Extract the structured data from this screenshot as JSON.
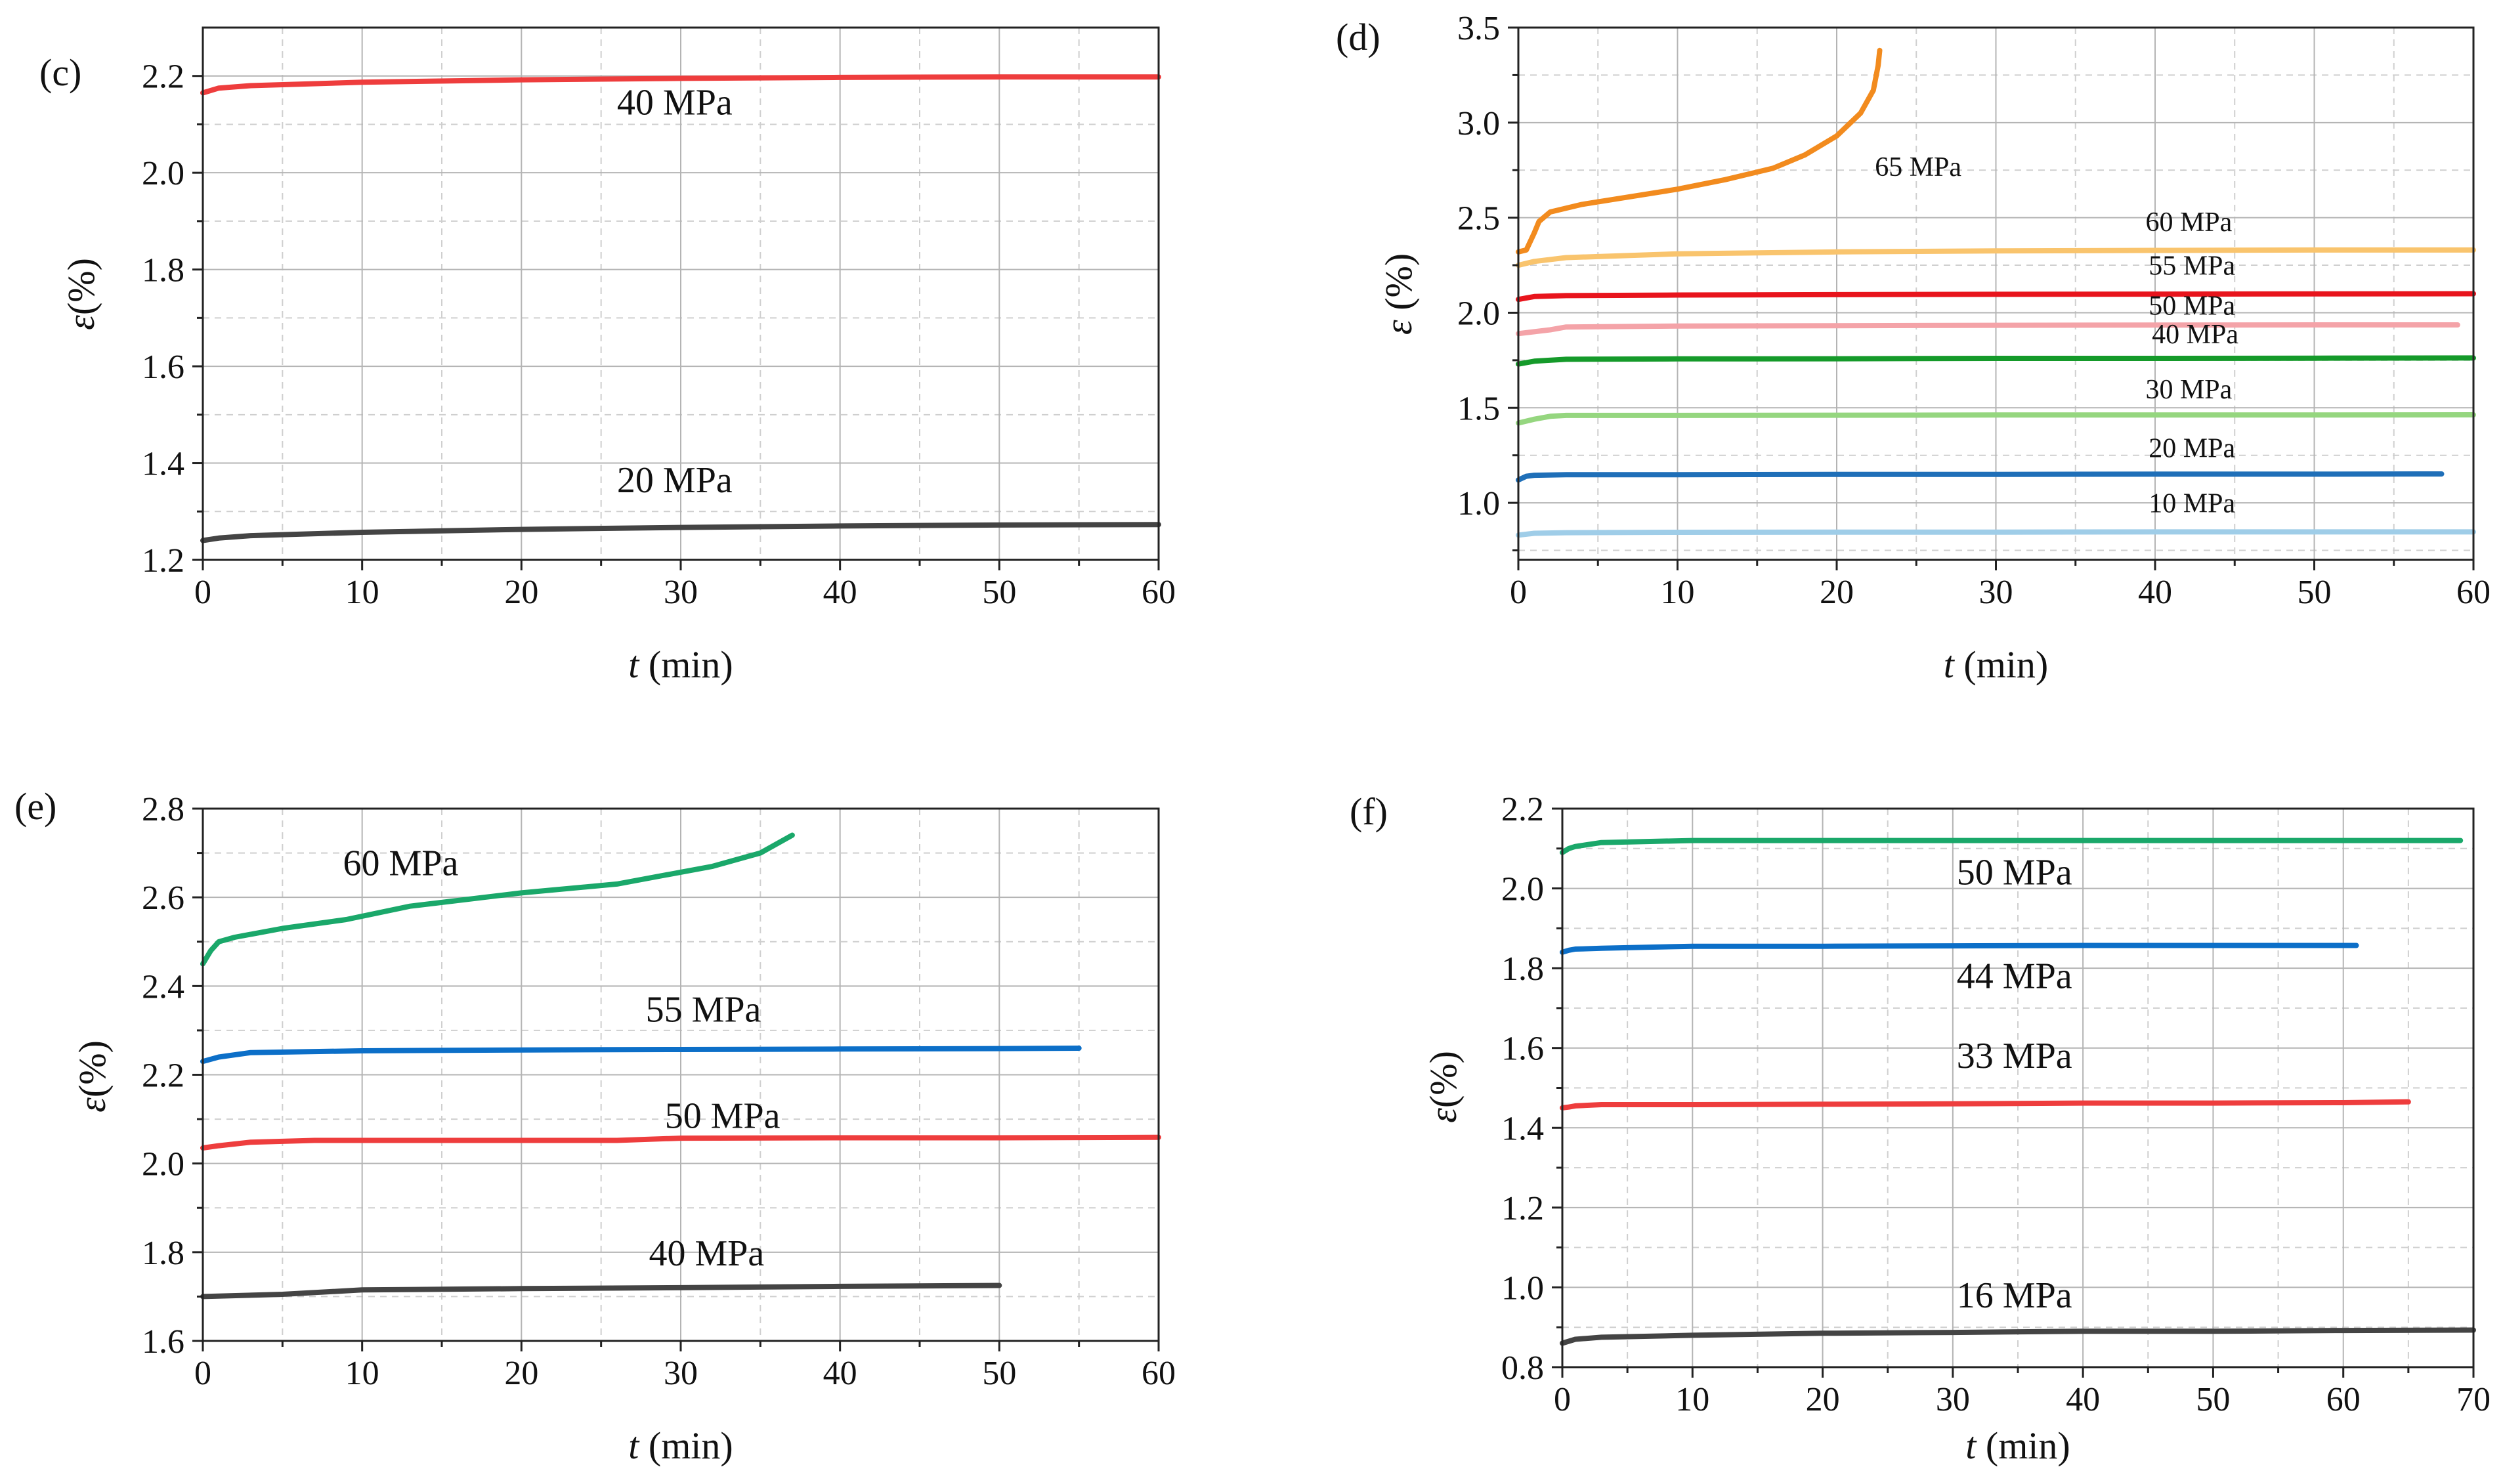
{
  "chart_data": [
    {
      "type": "line",
      "panel_label": "(c)",
      "xlabel_italic": "t",
      "xlabel_rest": " (min)",
      "ylabel_italic": "ε",
      "ylabel_rest": "(%)",
      "xlim": [
        0,
        60
      ],
      "ylim": [
        1.2,
        2.3
      ],
      "xticks": [
        0,
        10,
        20,
        30,
        40,
        50,
        60
      ],
      "xtick_labels": [
        "0",
        "10",
        "20",
        "30",
        "40",
        "50",
        "60"
      ],
      "yticks": [
        1.2,
        1.4,
        1.6,
        1.8,
        2.0,
        2.2
      ],
      "ytick_labels": [
        "1.2",
        "1.4",
        "1.6",
        "1.8",
        "2.0",
        "2.2"
      ],
      "xminor": [
        5,
        15,
        25,
        35,
        45,
        55
      ],
      "yminor": [
        1.3,
        1.5,
        1.7,
        1.9,
        2.1
      ],
      "series": [
        {
          "name": "40 MPa",
          "color": "#ee3d3d",
          "label_at": [
            26,
            2.12
          ],
          "x": [
            0,
            1,
            3,
            10,
            20,
            30,
            40,
            50,
            60
          ],
          "y": [
            2.165,
            2.175,
            2.18,
            2.187,
            2.192,
            2.195,
            2.197,
            2.198,
            2.198
          ]
        },
        {
          "name": "20 MPa",
          "color": "#444444",
          "label_at": [
            26,
            1.34
          ],
          "x": [
            0,
            1,
            3,
            10,
            20,
            30,
            40,
            50,
            60
          ],
          "y": [
            1.24,
            1.245,
            1.25,
            1.257,
            1.263,
            1.267,
            1.27,
            1.272,
            1.273
          ]
        }
      ]
    },
    {
      "type": "line",
      "panel_label": "(d)",
      "xlabel_italic": "t",
      "xlabel_rest": " (min)",
      "ylabel_italic": "ε",
      "ylabel_rest": " (%)",
      "xlim": [
        0,
        60
      ],
      "ylim": [
        0.7,
        3.5
      ],
      "xticks": [
        0,
        10,
        20,
        30,
        40,
        50,
        60
      ],
      "xtick_labels": [
        "0",
        "10",
        "20",
        "30",
        "40",
        "50",
        "60"
      ],
      "yticks": [
        1.0,
        1.5,
        2.0,
        2.5,
        3.0,
        3.5
      ],
      "ytick_labels": [
        "1.0",
        "1.5",
        "2.0",
        "2.5",
        "3.0",
        "3.5"
      ],
      "xminor": [
        5,
        15,
        25,
        35,
        45,
        55
      ],
      "yminor": [
        0.75,
        1.25,
        1.75,
        2.25,
        2.75,
        3.25
      ],
      "series": [
        {
          "name": "65 MPa",
          "color": "#f28b1e",
          "label_at": [
            22.4,
            2.72
          ],
          "x": [
            0,
            0.5,
            1,
            1.3,
            2,
            4,
            7,
            10,
            13,
            16,
            18,
            20,
            21.5,
            22.3,
            22.6,
            22.7
          ],
          "y": [
            2.32,
            2.33,
            2.42,
            2.48,
            2.53,
            2.57,
            2.61,
            2.65,
            2.7,
            2.76,
            2.83,
            2.93,
            3.05,
            3.17,
            3.3,
            3.38
          ]
        },
        {
          "name": "60 MPa",
          "color": "#f9c46d",
          "label_at": [
            39.4,
            2.43
          ],
          "x": [
            0,
            1,
            3,
            10,
            20,
            30,
            40,
            50,
            60
          ],
          "y": [
            2.25,
            2.27,
            2.29,
            2.31,
            2.32,
            2.325,
            2.328,
            2.33,
            2.33
          ]
        },
        {
          "name": "55 MPa",
          "color": "#e8141c",
          "label_at": [
            39.6,
            2.2
          ],
          "x": [
            0,
            1,
            3,
            10,
            20,
            30,
            40,
            50,
            60
          ],
          "y": [
            2.07,
            2.085,
            2.09,
            2.093,
            2.095,
            2.097,
            2.098,
            2.099,
            2.1
          ]
        },
        {
          "name": "50 MPa",
          "color": "#f4a3a8",
          "label_at": [
            39.6,
            1.99
          ],
          "x": [
            0,
            1,
            2,
            3,
            10,
            20,
            30,
            40,
            50,
            59
          ],
          "y": [
            1.89,
            1.9,
            1.91,
            1.925,
            1.93,
            1.932,
            1.934,
            1.935,
            1.936,
            1.936
          ]
        },
        {
          "name": "40 MPa",
          "color": "#159a2a",
          "label_at": [
            39.8,
            1.84
          ],
          "x": [
            0,
            1,
            3,
            10,
            20,
            30,
            40,
            50,
            60
          ],
          "y": [
            1.73,
            1.745,
            1.755,
            1.757,
            1.758,
            1.76,
            1.76,
            1.761,
            1.762
          ]
        },
        {
          "name": "30 MPa",
          "color": "#95d67f",
          "label_at": [
            39.4,
            1.55
          ],
          "x": [
            0,
            1,
            2,
            3,
            10,
            20,
            30,
            40,
            50,
            60
          ],
          "y": [
            1.42,
            1.44,
            1.455,
            1.46,
            1.46,
            1.461,
            1.462,
            1.462,
            1.462,
            1.463
          ]
        },
        {
          "name": "20 MPa",
          "color": "#1f6fb8",
          "label_at": [
            39.6,
            1.24
          ],
          "x": [
            0,
            0.5,
            1,
            3,
            10,
            20,
            30,
            40,
            50,
            58
          ],
          "y": [
            1.12,
            1.14,
            1.145,
            1.148,
            1.148,
            1.15,
            1.15,
            1.151,
            1.151,
            1.152
          ]
        },
        {
          "name": "10 MPa",
          "color": "#9fcde8",
          "label_at": [
            39.6,
            0.95
          ],
          "x": [
            0,
            1,
            3,
            10,
            20,
            30,
            40,
            50,
            60
          ],
          "y": [
            0.83,
            0.84,
            0.843,
            0.845,
            0.846,
            0.846,
            0.847,
            0.847,
            0.847
          ]
        }
      ]
    },
    {
      "type": "line",
      "panel_label": "(e)",
      "xlabel_italic": "t",
      "xlabel_rest": " (min)",
      "ylabel_italic": "ε",
      "ylabel_rest": "(%)",
      "xlim": [
        0,
        60
      ],
      "ylim": [
        1.6,
        2.8
      ],
      "xticks": [
        0,
        10,
        20,
        30,
        40,
        50,
        60
      ],
      "xtick_labels": [
        "0",
        "10",
        "20",
        "30",
        "40",
        "50",
        "60"
      ],
      "yticks": [
        1.6,
        1.8,
        2.0,
        2.2,
        2.4,
        2.6,
        2.8
      ],
      "ytick_labels": [
        "1.6",
        "1.8",
        "2.0",
        "2.2",
        "2.4",
        "2.6",
        "2.8"
      ],
      "xminor": [
        5,
        15,
        25,
        35,
        45,
        55
      ],
      "yminor": [
        1.7,
        1.9,
        2.1,
        2.3,
        2.5,
        2.7
      ],
      "series": [
        {
          "name": "60 MPa",
          "color": "#1aa86a",
          "label_at": [
            8.8,
            2.65
          ],
          "x": [
            0,
            0.5,
            1,
            2,
            5,
            9,
            13,
            20,
            26,
            32,
            35,
            37
          ],
          "y": [
            2.45,
            2.48,
            2.5,
            2.51,
            2.53,
            2.55,
            2.58,
            2.61,
            2.63,
            2.67,
            2.7,
            2.74
          ]
        },
        {
          "name": "55 MPa",
          "color": "#0c6fc8",
          "label_at": [
            27.8,
            2.32
          ],
          "x": [
            0,
            1,
            3,
            10,
            20,
            30,
            40,
            50,
            55
          ],
          "y": [
            2.23,
            2.24,
            2.25,
            2.254,
            2.256,
            2.257,
            2.258,
            2.259,
            2.26
          ]
        },
        {
          "name": "50 MPa",
          "color": "#ee3d3d",
          "label_at": [
            29,
            2.08
          ],
          "x": [
            0,
            1,
            3,
            7,
            15,
            26,
            30,
            40,
            50,
            60
          ],
          "y": [
            2.035,
            2.04,
            2.048,
            2.052,
            2.052,
            2.052,
            2.057,
            2.058,
            2.058,
            2.059
          ]
        },
        {
          "name": "40 MPa",
          "color": "#444444",
          "label_at": [
            28,
            1.77
          ],
          "x": [
            0,
            5,
            10,
            20,
            30,
            40,
            50
          ],
          "y": [
            1.7,
            1.705,
            1.715,
            1.718,
            1.72,
            1.723,
            1.725
          ]
        }
      ]
    },
    {
      "type": "line",
      "panel_label": "(f)",
      "xlabel_italic": "t",
      "xlabel_rest": " (min)",
      "ylabel_italic": "ε",
      "ylabel_rest": "(%)",
      "xlim": [
        0,
        70
      ],
      "ylim": [
        0.8,
        2.2
      ],
      "xticks": [
        0,
        10,
        20,
        30,
        40,
        50,
        60,
        70
      ],
      "xtick_labels": [
        "0",
        "10",
        "20",
        "30",
        "40",
        "50",
        "60",
        "70"
      ],
      "yticks": [
        0.8,
        1.0,
        1.2,
        1.4,
        1.6,
        1.8,
        2.0,
        2.2
      ],
      "ytick_labels": [
        "0.8",
        "1.0",
        "1.2",
        "1.4",
        "1.6",
        "1.8",
        "2.0",
        "2.2"
      ],
      "xminor": [
        5,
        15,
        25,
        35,
        45,
        55,
        65
      ],
      "yminor": [
        0.9,
        1.1,
        1.3,
        1.5,
        1.7,
        1.9,
        2.1
      ],
      "series": [
        {
          "name": "50 MPa",
          "color": "#1aa86a",
          "label_at": [
            30.3,
            2.01
          ],
          "x": [
            0,
            0.5,
            1,
            3,
            10,
            20,
            30,
            40,
            50,
            60,
            69
          ],
          "y": [
            2.09,
            2.1,
            2.105,
            2.115,
            2.12,
            2.12,
            2.12,
            2.12,
            2.12,
            2.12,
            2.12
          ]
        },
        {
          "name": "44 MPa",
          "color": "#0c6fc8",
          "label_at": [
            30.3,
            1.75
          ],
          "x": [
            0,
            0.5,
            1,
            3,
            10,
            20,
            30,
            40,
            50,
            61
          ],
          "y": [
            1.84,
            1.845,
            1.848,
            1.85,
            1.855,
            1.855,
            1.856,
            1.857,
            1.857,
            1.857
          ]
        },
        {
          "name": "33 MPa",
          "color": "#ee3d3d",
          "label_at": [
            30.3,
            1.55
          ],
          "x": [
            0,
            0.5,
            1,
            3,
            10,
            20,
            30,
            40,
            50,
            60,
            65
          ],
          "y": [
            1.45,
            1.452,
            1.455,
            1.458,
            1.458,
            1.459,
            1.46,
            1.462,
            1.462,
            1.463,
            1.465
          ]
        },
        {
          "name": "16 MPa",
          "color": "#444444",
          "label_at": [
            30.3,
            0.95
          ],
          "x": [
            0,
            0.5,
            1,
            3,
            10,
            20,
            30,
            40,
            50,
            60,
            70
          ],
          "y": [
            0.86,
            0.865,
            0.87,
            0.875,
            0.88,
            0.885,
            0.887,
            0.89,
            0.89,
            0.892,
            0.893
          ]
        }
      ]
    }
  ]
}
